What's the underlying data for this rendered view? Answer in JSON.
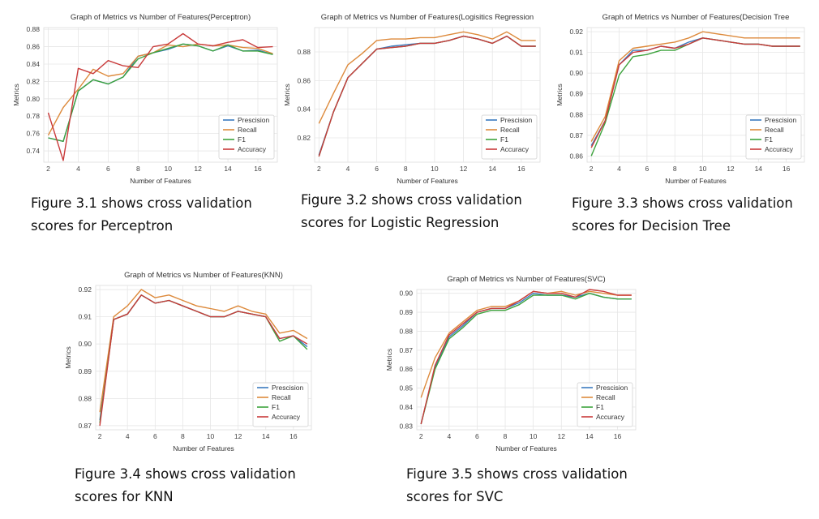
{
  "colors": {
    "Prescision": "#3b7bbf",
    "Recall": "#dd8a3c",
    "F1": "#3ea33e",
    "Accuracy": "#c93b3b",
    "grid": "#e6e6e6",
    "background": "#ffffff"
  },
  "figures": [
    {
      "caption_line1": "Figure 3.1 shows cross validation",
      "caption_line2": "scores for Perceptron"
    },
    {
      "caption_line1": "Figure 3.2 shows cross validation",
      "caption_line2": "scores for Logistic Regression"
    },
    {
      "caption_line1": "Figure 3.3 shows cross validation",
      "caption_line2": "scores for Decision Tree"
    },
    {
      "caption_line1": "Figure 3.4 shows cross validation",
      "caption_line2": "scores for KNN"
    },
    {
      "caption_line1": "Figure 3.5 shows cross validation",
      "caption_line2": "scores for SVC"
    }
  ],
  "chart_data": [
    {
      "type": "line",
      "title": "Graph of Metrics vs Number of Features(Perceptron)",
      "xlabel": "Number of Features",
      "ylabel": "Metrics",
      "x": [
        2,
        3,
        4,
        5,
        6,
        7,
        8,
        9,
        10,
        11,
        12,
        13,
        14,
        15,
        16,
        17
      ],
      "xticks": [
        2,
        4,
        6,
        8,
        10,
        12,
        14,
        16
      ],
      "xlim": [
        1.7,
        17.3
      ],
      "ylim": [
        0.727,
        0.882
      ],
      "yticks": [
        0.74,
        0.76,
        0.78,
        0.8,
        0.82,
        0.84,
        0.86,
        0.88
      ],
      "ytick_labels": [
        "0.74",
        "0.76",
        "0.78",
        "0.80",
        "0.82",
        "0.84",
        "0.86",
        "0.88"
      ],
      "grid": true,
      "legend_position": "lower-right",
      "series": [
        {
          "name": "Prescision",
          "values": [
            0.755,
            0.751,
            0.809,
            0.822,
            0.817,
            0.825,
            0.849,
            0.853,
            0.857,
            0.863,
            0.861,
            0.855,
            0.861,
            0.855,
            0.856,
            0.851
          ]
        },
        {
          "name": "Recall",
          "values": [
            0.758,
            0.79,
            0.811,
            0.834,
            0.826,
            0.829,
            0.849,
            0.853,
            0.862,
            0.86,
            0.863,
            0.861,
            0.862,
            0.859,
            0.858,
            0.852
          ]
        },
        {
          "name": "F1",
          "values": [
            0.755,
            0.751,
            0.809,
            0.822,
            0.817,
            0.825,
            0.846,
            0.853,
            0.858,
            0.863,
            0.861,
            0.855,
            0.862,
            0.855,
            0.855,
            0.851
          ]
        },
        {
          "name": "Accuracy",
          "values": [
            0.784,
            0.729,
            0.835,
            0.829,
            0.844,
            0.838,
            0.836,
            0.86,
            0.863,
            0.875,
            0.863,
            0.861,
            0.865,
            0.868,
            0.859,
            0.86
          ]
        }
      ]
    },
    {
      "type": "line",
      "title": "Graph of Metrics vs Number of Features(Logisitics Regression",
      "xlabel": "Number of Features",
      "ylabel": "Metrics",
      "x": [
        2,
        3,
        4,
        5,
        6,
        7,
        8,
        9,
        10,
        11,
        12,
        13,
        14,
        15,
        16,
        17
      ],
      "xticks": [
        2,
        4,
        6,
        8,
        10,
        12,
        14,
        16
      ],
      "xlim": [
        1.7,
        17.3
      ],
      "ylim": [
        0.803,
        0.897
      ],
      "yticks": [
        0.82,
        0.84,
        0.86,
        0.88
      ],
      "ytick_labels": [
        "0.82",
        "0.84",
        "0.86",
        "0.88"
      ],
      "grid": true,
      "legend_position": "lower-right",
      "series": [
        {
          "name": "Prescision",
          "values": [
            0.808,
            0.838,
            0.862,
            0.872,
            0.882,
            0.884,
            0.885,
            0.886,
            0.886,
            0.888,
            0.891,
            0.889,
            0.886,
            0.891,
            0.884,
            0.884
          ]
        },
        {
          "name": "Recall",
          "values": [
            0.83,
            0.851,
            0.871,
            0.879,
            0.888,
            0.889,
            0.889,
            0.89,
            0.89,
            0.892,
            0.894,
            0.892,
            0.889,
            0.894,
            0.888,
            0.888
          ]
        },
        {
          "name": "F1",
          "values": [
            0.807,
            0.838,
            0.862,
            0.872,
            0.882,
            0.883,
            0.884,
            0.886,
            0.886,
            0.888,
            0.891,
            0.889,
            0.886,
            0.891,
            0.884,
            0.884
          ]
        },
        {
          "name": "Accuracy",
          "values": [
            0.807,
            0.838,
            0.862,
            0.872,
            0.882,
            0.883,
            0.884,
            0.886,
            0.886,
            0.888,
            0.891,
            0.889,
            0.886,
            0.891,
            0.884,
            0.884
          ]
        }
      ]
    },
    {
      "type": "line",
      "title": "Graph of Metrics vs Number of Features(Decision Tree",
      "xlabel": "Number of Features",
      "ylabel": "Metrics",
      "x": [
        2,
        3,
        4,
        5,
        6,
        7,
        8,
        9,
        10,
        11,
        12,
        13,
        14,
        15,
        16,
        17
      ],
      "xticks": [
        2,
        4,
        6,
        8,
        10,
        12,
        14,
        16
      ],
      "xlim": [
        1.7,
        17.3
      ],
      "ylim": [
        0.857,
        0.922
      ],
      "yticks": [
        0.86,
        0.87,
        0.88,
        0.89,
        0.9,
        0.91,
        0.92
      ],
      "ytick_labels": [
        "0.86",
        "0.87",
        "0.88",
        "0.89",
        "0.90",
        "0.91",
        "0.92"
      ],
      "grid": true,
      "legend_position": "lower-right",
      "series": [
        {
          "name": "Prescision",
          "values": [
            0.865,
            0.877,
            0.904,
            0.911,
            0.911,
            0.913,
            0.912,
            0.915,
            0.917,
            0.916,
            0.915,
            0.914,
            0.914,
            0.913,
            0.913,
            0.913
          ]
        },
        {
          "name": "Recall",
          "values": [
            0.867,
            0.879,
            0.906,
            0.912,
            0.913,
            0.914,
            0.915,
            0.917,
            0.92,
            0.919,
            0.918,
            0.917,
            0.917,
            0.917,
            0.917,
            0.917
          ]
        },
        {
          "name": "F1",
          "values": [
            0.86,
            0.876,
            0.899,
            0.908,
            0.909,
            0.911,
            0.911,
            0.914,
            0.917,
            0.916,
            0.915,
            0.914,
            0.914,
            0.913,
            0.913,
            0.913
          ]
        },
        {
          "name": "Accuracy",
          "values": [
            0.864,
            0.877,
            0.904,
            0.91,
            0.911,
            0.913,
            0.912,
            0.914,
            0.917,
            0.916,
            0.915,
            0.914,
            0.914,
            0.913,
            0.913,
            0.913
          ]
        }
      ]
    },
    {
      "type": "line",
      "title": "Graph of Metrics vs Number of Features(KNN)",
      "xlabel": "Number of Features",
      "ylabel": "Metrics",
      "x": [
        2,
        3,
        4,
        5,
        6,
        7,
        8,
        9,
        10,
        11,
        12,
        13,
        14,
        15,
        16,
        17
      ],
      "xticks": [
        2,
        4,
        6,
        8,
        10,
        12,
        14,
        16
      ],
      "xlim": [
        1.7,
        17.3
      ],
      "ylim": [
        0.8685,
        0.9215
      ],
      "yticks": [
        0.87,
        0.88,
        0.89,
        0.9,
        0.91,
        0.92
      ],
      "ytick_labels": [
        "0.87",
        "0.88",
        "0.89",
        "0.90",
        "0.91",
        "0.92"
      ],
      "grid": true,
      "legend_position": "lower-right",
      "series": [
        {
          "name": "Prescision",
          "values": [
            0.872,
            0.909,
            0.911,
            0.918,
            0.915,
            0.916,
            0.914,
            0.912,
            0.91,
            0.91,
            0.912,
            0.911,
            0.91,
            0.902,
            0.903,
            0.899
          ]
        },
        {
          "name": "Recall",
          "values": [
            0.875,
            0.91,
            0.914,
            0.92,
            0.917,
            0.918,
            0.916,
            0.914,
            0.913,
            0.912,
            0.914,
            0.912,
            0.911,
            0.904,
            0.905,
            0.902
          ]
        },
        {
          "name": "F1",
          "values": [
            0.871,
            0.909,
            0.911,
            0.918,
            0.915,
            0.916,
            0.914,
            0.912,
            0.91,
            0.91,
            0.912,
            0.911,
            0.91,
            0.901,
            0.903,
            0.898
          ]
        },
        {
          "name": "Accuracy",
          "values": [
            0.87,
            0.909,
            0.911,
            0.918,
            0.915,
            0.916,
            0.914,
            0.912,
            0.91,
            0.91,
            0.912,
            0.911,
            0.91,
            0.902,
            0.903,
            0.9
          ]
        }
      ]
    },
    {
      "type": "line",
      "title": "Graph of Metrics vs Number of Features(SVC)",
      "xlabel": "Number of Features",
      "ylabel": "Metrics",
      "x": [
        2,
        3,
        4,
        5,
        6,
        7,
        8,
        9,
        10,
        11,
        12,
        13,
        14,
        15,
        16,
        17
      ],
      "xticks": [
        2,
        4,
        6,
        8,
        10,
        12,
        14,
        16
      ],
      "xlim": [
        1.7,
        17.3
      ],
      "ylim": [
        0.828,
        0.902
      ],
      "yticks": [
        0.83,
        0.84,
        0.85,
        0.86,
        0.87,
        0.88,
        0.89,
        0.9
      ],
      "ytick_labels": [
        "0.83",
        "0.84",
        "0.85",
        "0.86",
        "0.87",
        "0.88",
        "0.89",
        "0.90"
      ],
      "grid": true,
      "legend_position": "lower-right",
      "series": [
        {
          "name": "Prescision",
          "values": [
            0.831,
            0.861,
            0.877,
            0.883,
            0.89,
            0.892,
            0.892,
            0.895,
            0.9,
            0.899,
            0.899,
            0.898,
            0.9,
            0.898,
            0.897,
            0.897
          ]
        },
        {
          "name": "Recall",
          "values": [
            0.845,
            0.866,
            0.879,
            0.885,
            0.891,
            0.893,
            0.893,
            0.896,
            0.901,
            0.9,
            0.901,
            0.899,
            0.901,
            0.9,
            0.899,
            0.899
          ]
        },
        {
          "name": "F1",
          "values": [
            0.831,
            0.86,
            0.876,
            0.882,
            0.889,
            0.891,
            0.891,
            0.894,
            0.899,
            0.899,
            0.899,
            0.897,
            0.9,
            0.898,
            0.897,
            0.897
          ]
        },
        {
          "name": "Accuracy",
          "values": [
            0.831,
            0.862,
            0.878,
            0.884,
            0.89,
            0.892,
            0.892,
            0.896,
            0.901,
            0.9,
            0.9,
            0.898,
            0.902,
            0.901,
            0.899,
            0.899
          ]
        }
      ]
    }
  ]
}
